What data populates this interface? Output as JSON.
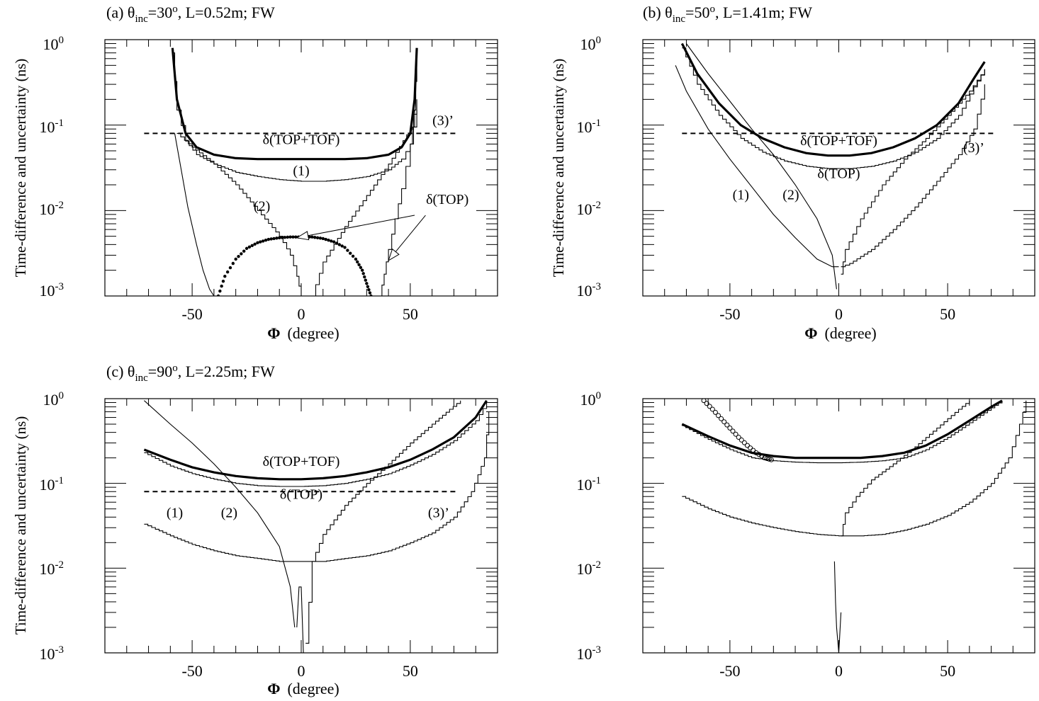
{
  "chart_data": [
    {
      "type": "line",
      "title": "(a) θinc=30o, L=0.52m; FW",
      "title_parts": {
        "prefix": "(a) θ",
        "sub": "inc",
        "eq": "=30",
        "sup": "o",
        "rest": ", L=0.52m; FW"
      },
      "xlabel": "Φ (degree)",
      "xlabel_parts": {
        "sym": "Φ",
        "text": "(degree)"
      },
      "ylabel": "Time-difference and uncertainty (ns)",
      "yscale": "log",
      "xlim": [
        -90,
        90
      ],
      "ylim": [
        0.001,
        1
      ],
      "xticks": [
        -50,
        0,
        50
      ],
      "yticks": [
        {
          "base": "10",
          "exp": "-3"
        },
        {
          "base": "10",
          "exp": "-2"
        },
        {
          "base": "10",
          "exp": "-1"
        },
        {
          "base": "10",
          "exp": "0"
        }
      ],
      "grid": false,
      "series": [
        {
          "label": "δ(TOP+TOF)",
          "style": "thick",
          "x": [
            -59,
            -57,
            -53,
            -48,
            -40,
            -30,
            -20,
            -10,
            0,
            10,
            20,
            30,
            40,
            46,
            50,
            52,
            53
          ],
          "y": [
            0.8,
            0.2,
            0.08,
            0.055,
            0.045,
            0.041,
            0.04,
            0.04,
            0.04,
            0.04,
            0.04,
            0.041,
            0.045,
            0.055,
            0.08,
            0.2,
            0.8
          ]
        },
        {
          "label": "(1)",
          "style": "step",
          "x": [
            -59,
            -57,
            -53,
            -48,
            -40,
            -30,
            -20,
            -10,
            0,
            10,
            20,
            30,
            40,
            46,
            50,
            52,
            53
          ],
          "y": [
            0.7,
            0.15,
            0.065,
            0.045,
            0.035,
            0.028,
            0.025,
            0.023,
            0.022,
            0.022,
            0.023,
            0.025,
            0.03,
            0.04,
            0.06,
            0.15,
            0.7
          ]
        },
        {
          "label": "(2)",
          "style": "step",
          "x": [
            -57,
            -50,
            -40,
            -30,
            -20,
            -10,
            -5,
            -2,
            0
          ],
          "y": [
            0.08,
            0.055,
            0.035,
            0.02,
            0.01,
            0.005,
            0.003,
            0.0017,
            0.001
          ]
        },
        {
          "label": "(2)",
          "style": "step",
          "x": [
            5,
            10,
            20,
            30,
            40,
            50,
            53
          ],
          "y": [
            0.001,
            0.0025,
            0.0065,
            0.015,
            0.035,
            0.09,
            0.2
          ]
        },
        {
          "label": "(1)",
          "style": "thin",
          "x": [
            -58,
            -55,
            -52,
            -48,
            -45,
            -42,
            -40
          ],
          "y": [
            0.08,
            0.03,
            0.011,
            0.004,
            0.002,
            0.0012,
            0.001
          ]
        },
        {
          "label": "(1)",
          "style": "step",
          "x": [
            36,
            38,
            40,
            43,
            46,
            50,
            53
          ],
          "y": [
            0.001,
            0.0018,
            0.0035,
            0.008,
            0.018,
            0.06,
            0.15
          ]
        },
        {
          "label": "δ(TOP)",
          "style": "dots",
          "x": [
            -38,
            -35,
            -30,
            -25,
            -20,
            -15,
            -10,
            -5,
            0,
            5,
            10,
            15,
            20,
            25,
            28,
            30,
            32
          ],
          "y": [
            0.001,
            0.0017,
            0.0027,
            0.0036,
            0.0042,
            0.0046,
            0.0048,
            0.0049,
            0.0049,
            0.0049,
            0.0047,
            0.0043,
            0.0037,
            0.0027,
            0.002,
            0.0014,
            0.001
          ]
        },
        {
          "label": "(3)’",
          "style": "dashed",
          "x": [
            -72,
            72
          ],
          "y": [
            0.08,
            0.08
          ]
        }
      ],
      "annotations": [
        {
          "text": "(3)’",
          "x": 65,
          "y": 0.1
        },
        {
          "text": "δ(TOP+TOF)",
          "x": 0,
          "y": 0.06
        },
        {
          "text": "(1)",
          "x": 0,
          "y": 0.026
        },
        {
          "text": "(2)",
          "x": -18,
          "y": 0.01
        },
        {
          "text": "δ(TOP)",
          "x": 67,
          "y": 0.012
        }
      ],
      "arrows": [
        {
          "from": [
            52,
            0.0088
          ],
          "to": [
            -2,
            0.0048
          ]
        },
        {
          "from": [
            57,
            0.0088
          ],
          "to": [
            40,
            0.0026
          ]
        }
      ]
    },
    {
      "type": "line",
      "title": "(b) θinc=50o, L=1.41m; FW",
      "title_parts": {
        "prefix": "(b) θ",
        "sub": "inc",
        "eq": "=50",
        "sup": "o",
        "rest": ", L=1.41m; FW"
      },
      "xlabel": "Φ (degree)",
      "xlabel_parts": {
        "sym": "Φ",
        "text": "(degree)"
      },
      "ylabel": "Time-difference and uncertainty (ns)",
      "yscale": "log",
      "xlim": [
        -90,
        90
      ],
      "ylim": [
        0.001,
        1
      ],
      "xticks": [
        -50,
        0,
        50
      ],
      "yticks": [
        {
          "base": "10",
          "exp": "-3"
        },
        {
          "base": "10",
          "exp": "-2"
        },
        {
          "base": "10",
          "exp": "-1"
        },
        {
          "base": "10",
          "exp": "0"
        }
      ],
      "grid": false,
      "series": [
        {
          "label": "δ(TOP+TOF)",
          "style": "thick",
          "x": [
            -72,
            -65,
            -55,
            -45,
            -35,
            -25,
            -15,
            -5,
            5,
            15,
            25,
            35,
            45,
            55,
            62,
            67
          ],
          "y": [
            0.9,
            0.4,
            0.18,
            0.1,
            0.07,
            0.055,
            0.047,
            0.044,
            0.044,
            0.047,
            0.055,
            0.07,
            0.1,
            0.18,
            0.35,
            0.55
          ]
        },
        {
          "label": "δ(TOP)",
          "style": "step",
          "x": [
            -72,
            -65,
            -55,
            -45,
            -35,
            -25,
            -15,
            -5,
            5,
            15,
            25,
            35,
            45,
            55,
            62,
            67
          ],
          "y": [
            0.8,
            0.3,
            0.13,
            0.07,
            0.048,
            0.038,
            0.033,
            0.031,
            0.031,
            0.033,
            0.038,
            0.048,
            0.07,
            0.13,
            0.28,
            0.45
          ]
        },
        {
          "label": "(1)",
          "style": "thin",
          "x": [
            -75,
            -70,
            -60,
            -50,
            -40,
            -30,
            -20,
            -10,
            -3,
            0
          ],
          "y": [
            0.5,
            0.25,
            0.09,
            0.04,
            0.019,
            0.009,
            0.0048,
            0.0027,
            0.0022,
            0.0022
          ]
        },
        {
          "label": "(1)",
          "style": "step",
          "x": [
            1,
            5,
            15,
            25,
            35,
            45,
            55,
            62,
            67
          ],
          "y": [
            0.0022,
            0.0024,
            0.0035,
            0.006,
            0.011,
            0.022,
            0.045,
            0.09,
            0.3
          ]
        },
        {
          "label": "(2)",
          "style": "thin",
          "x": [
            -70,
            -60,
            -50,
            -40,
            -30,
            -20,
            -10,
            -3,
            -1
          ],
          "y": [
            0.9,
            0.4,
            0.19,
            0.09,
            0.045,
            0.02,
            0.008,
            0.003,
            0.0012
          ]
        },
        {
          "label": "(2)",
          "style": "step",
          "x": [
            1,
            3,
            10,
            20,
            30,
            40,
            50,
            60,
            67
          ],
          "y": [
            0.0018,
            0.0035,
            0.008,
            0.02,
            0.04,
            0.07,
            0.13,
            0.25,
            0.45
          ]
        },
        {
          "label": "(3)’",
          "style": "dashed",
          "x": [
            -72,
            72
          ],
          "y": [
            0.08,
            0.08
          ]
        }
      ],
      "annotations": [
        {
          "text": "δ(TOP+TOF)",
          "x": 0,
          "y": 0.058
        },
        {
          "text": "δ(TOP)",
          "x": 0,
          "y": 0.024
        },
        {
          "text": "(3)’",
          "x": 62,
          "y": 0.048
        },
        {
          "text": "(1)",
          "x": -45,
          "y": 0.0135
        },
        {
          "text": "(2)",
          "x": -22,
          "y": 0.0135
        }
      ]
    },
    {
      "type": "line",
      "title": "(c) θinc=90o, L=2.25m; FW",
      "title_parts": {
        "prefix": "(c) θ",
        "sub": "inc",
        "eq": "=90",
        "sup": "o",
        "rest": ", L=2.25m; FW"
      },
      "xlabel": "Φ (degree)",
      "xlabel_parts": {
        "sym": "Φ",
        "text": "(degree)"
      },
      "ylabel": "Time-difference and uncertainty (ns)",
      "yscale": "log",
      "xlim": [
        -90,
        90
      ],
      "ylim": [
        0.001,
        1
      ],
      "xticks": [
        -50,
        0,
        50
      ],
      "yticks": [
        {
          "base": "10",
          "exp": "-3"
        },
        {
          "base": "10",
          "exp": "-2"
        },
        {
          "base": "10",
          "exp": "-1"
        },
        {
          "base": "10",
          "exp": "0"
        }
      ],
      "grid": false,
      "series": [
        {
          "label": "δ(TOP+TOF)",
          "style": "thick",
          "x": [
            -72,
            -60,
            -50,
            -40,
            -30,
            -20,
            -10,
            0,
            10,
            20,
            30,
            40,
            50,
            60,
            70,
            80,
            85
          ],
          "y": [
            0.25,
            0.19,
            0.155,
            0.135,
            0.122,
            0.115,
            0.112,
            0.112,
            0.115,
            0.122,
            0.135,
            0.155,
            0.19,
            0.25,
            0.35,
            0.6,
            0.95
          ]
        },
        {
          "label": "δ(TOP)",
          "style": "step",
          "x": [
            -72,
            -60,
            -50,
            -40,
            -30,
            -20,
            -10,
            0,
            10,
            20,
            30,
            40,
            50,
            60,
            70,
            80,
            85
          ],
          "y": [
            0.23,
            0.16,
            0.13,
            0.112,
            0.1,
            0.094,
            0.092,
            0.092,
            0.094,
            0.1,
            0.112,
            0.13,
            0.165,
            0.22,
            0.32,
            0.55,
            0.9
          ]
        },
        {
          "label": "(1)",
          "style": "step",
          "x": [
            -72,
            -60,
            -50,
            -40,
            -30,
            -20,
            -10,
            0,
            10,
            20,
            30,
            40,
            50,
            60,
            70,
            78,
            84,
            86
          ],
          "y": [
            0.033,
            0.024,
            0.019,
            0.016,
            0.014,
            0.013,
            0.012,
            0.012,
            0.012,
            0.013,
            0.014,
            0.016,
            0.02,
            0.026,
            0.04,
            0.08,
            0.2,
            0.7
          ]
        },
        {
          "label": "(2)",
          "style": "thin",
          "x": [
            -72,
            -60,
            -50,
            -40,
            -30,
            -20,
            -10,
            -5,
            -3
          ],
          "y": [
            0.95,
            0.5,
            0.3,
            0.17,
            0.09,
            0.045,
            0.018,
            0.006,
            0.002
          ]
        },
        {
          "label": "(2)",
          "style": "step",
          "x": [
            2,
            5,
            10,
            20,
            30,
            40,
            50,
            60,
            68,
            73
          ],
          "y": [
            0.0013,
            0.012,
            0.025,
            0.055,
            0.1,
            0.17,
            0.3,
            0.5,
            0.75,
            0.95
          ]
        },
        {
          "label": "(2)",
          "style": "thin",
          "x": [
            -2,
            -1,
            0,
            1
          ],
          "y": [
            0.002,
            0.006,
            0.006,
            0.001
          ]
        },
        {
          "label": "(3)’",
          "style": "dashed",
          "x": [
            -72,
            72
          ],
          "y": [
            0.08,
            0.08
          ]
        }
      ],
      "annotations": [
        {
          "text": "δ(TOP+TOF)",
          "x": 0,
          "y": 0.16
        },
        {
          "text": "δ(TOP)",
          "x": 0,
          "y": 0.066
        },
        {
          "text": "(1)",
          "x": -58,
          "y": 0.04
        },
        {
          "text": "(2)",
          "x": -33,
          "y": 0.04
        },
        {
          "text": "(3)’",
          "x": 63,
          "y": 0.04
        }
      ]
    },
    {
      "type": "line",
      "title": "",
      "xlabel": "",
      "ylabel": "",
      "yscale": "log",
      "xlim": [
        -90,
        90
      ],
      "ylim": [
        0.001,
        1
      ],
      "xticks": [
        -50,
        0,
        50
      ],
      "yticks": [
        {
          "base": "10",
          "exp": "-3"
        },
        {
          "base": "10",
          "exp": "-2"
        },
        {
          "base": "10",
          "exp": "-1"
        },
        {
          "base": "10",
          "exp": "0"
        }
      ],
      "grid": false,
      "series": [
        {
          "label": "",
          "style": "thick",
          "x": [
            -72,
            -60,
            -50,
            -40,
            -30,
            -20,
            -10,
            0,
            10,
            20,
            30,
            40,
            50,
            60,
            70,
            75
          ],
          "y": [
            0.5,
            0.36,
            0.28,
            0.23,
            0.21,
            0.2,
            0.2,
            0.2,
            0.2,
            0.21,
            0.23,
            0.28,
            0.38,
            0.55,
            0.8,
            0.95
          ]
        },
        {
          "label": "",
          "style": "step",
          "x": [
            -72,
            -60,
            -50,
            -40,
            -30,
            -20,
            -10,
            0,
            10,
            20,
            30,
            40,
            50,
            60,
            70,
            75
          ],
          "y": [
            0.48,
            0.33,
            0.25,
            0.2,
            0.185,
            0.178,
            0.175,
            0.175,
            0.178,
            0.185,
            0.2,
            0.25,
            0.35,
            0.52,
            0.78,
            0.95
          ]
        },
        {
          "label": "",
          "style": "circles",
          "x": [
            -62,
            -58,
            -54,
            -50,
            -46,
            -42,
            -38,
            -34,
            -31
          ],
          "y": [
            0.95,
            0.75,
            0.58,
            0.45,
            0.35,
            0.28,
            0.23,
            0.2,
            0.19
          ]
        },
        {
          "label": "",
          "style": "step",
          "x": [
            -72,
            -60,
            -50,
            -40,
            -30,
            -20,
            -10,
            0,
            10,
            20,
            30,
            40,
            50,
            60,
            70,
            78,
            83,
            86
          ],
          "y": [
            0.07,
            0.05,
            0.04,
            0.034,
            0.03,
            0.027,
            0.025,
            0.024,
            0.024,
            0.025,
            0.028,
            0.033,
            0.042,
            0.06,
            0.1,
            0.2,
            0.5,
            0.95
          ]
        },
        {
          "label": "",
          "style": "step",
          "x": [
            1,
            3,
            8,
            15,
            25,
            35,
            45,
            55,
            60
          ],
          "y": [
            0.024,
            0.045,
            0.07,
            0.11,
            0.17,
            0.27,
            0.45,
            0.75,
            0.95
          ]
        },
        {
          "label": "",
          "style": "thin",
          "x": [
            -2,
            -1.5,
            -1,
            0,
            1
          ],
          "y": [
            0.012,
            0.004,
            0.002,
            0.001,
            0.003
          ]
        }
      ]
    }
  ]
}
